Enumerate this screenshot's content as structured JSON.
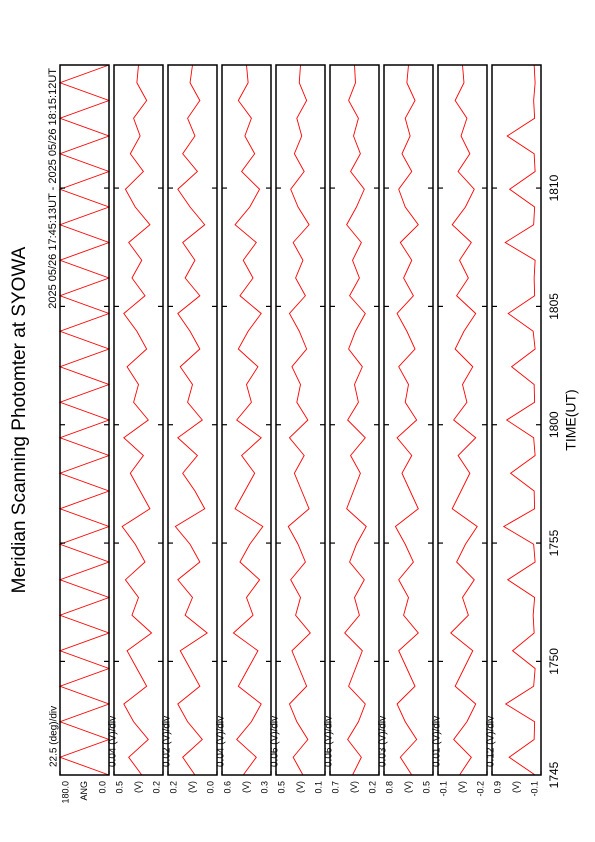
{
  "chart_data": {
    "type": "line",
    "title": "Meridian Scanning Photomter at SYOWA",
    "subtitle": "2025 05/26 17:45:13UT - 2025 05/26 18:15:12UT",
    "xlabel": "TIME(UT)",
    "color": "#ff0000",
    "xlim": [
      1065.2,
      1095.2
    ],
    "xticks": [
      {
        "value": 1065,
        "label": "1745"
      },
      {
        "value": 1070,
        "label": "1750"
      },
      {
        "value": 1075,
        "label": "1755"
      },
      {
        "value": 1080,
        "label": "1800"
      },
      {
        "value": 1085,
        "label": "1805"
      },
      {
        "value": 1090,
        "label": "1810"
      }
    ],
    "x": [
      1065.2,
      1065.95,
      1066.7,
      1067.45,
      1068.2,
      1068.95,
      1069.7,
      1070.45,
      1071.2,
      1071.95,
      1072.7,
      1073.45,
      1074.2,
      1074.95,
      1075.7,
      1076.45,
      1077.2,
      1077.95,
      1078.7,
      1079.45,
      1080.2,
      1080.95,
      1081.7,
      1082.45,
      1083.2,
      1083.95,
      1084.7,
      1085.45,
      1086.2,
      1086.95,
      1087.7,
      1088.45,
      1089.2,
      1089.95,
      1090.7,
      1091.45,
      1092.2,
      1092.95,
      1093.7,
      1094.45,
      1095.2
    ],
    "panels": [
      {
        "scale": "22.5 (deg)/div",
        "ylabel": "ANG",
        "ylim": [
          0,
          180
        ],
        "yticks": [
          {
            "value": 0,
            "label": "0.0"
          },
          {
            "value": 180,
            "label": "180.0"
          }
        ],
        "values": [
          0,
          180,
          0,
          180,
          0,
          180,
          0,
          180,
          0,
          180,
          0,
          180,
          0,
          180,
          0,
          180,
          0,
          180,
          0,
          180,
          0,
          180,
          0,
          180,
          0,
          180,
          0,
          180,
          0,
          180,
          0,
          180,
          0,
          180,
          0,
          180,
          0,
          180,
          0,
          180,
          0
        ]
      },
      {
        "scale": "0.04 (V)/div",
        "ylabel": "(V)",
        "ylim": [
          0.2,
          0.5
        ],
        "yticks": [
          0.2,
          0.5
        ],
        "values": [
          0.33,
          0.41,
          0.29,
          0.38,
          0.44,
          0.3,
          0.36,
          0.42,
          0.27,
          0.39,
          0.35,
          0.43,
          0.31,
          0.37,
          0.45,
          0.28,
          0.34,
          0.4,
          0.32,
          0.44,
          0.29,
          0.38,
          0.35,
          0.42,
          0.3,
          0.36,
          0.44,
          0.31,
          0.39,
          0.33,
          0.41,
          0.28,
          0.37,
          0.43,
          0.32,
          0.4,
          0.34,
          0.38,
          0.3,
          0.36,
          0.35
        ]
      },
      {
        "scale": "0.02 (V)/div",
        "ylabel": "(V)",
        "ylim": [
          0,
          0.2
        ],
        "yticks": [
          {
            "value": 0,
            "label": "0.0"
          },
          0.2
        ],
        "values": [
          0.09,
          0.14,
          0.06,
          0.12,
          0.16,
          0.07,
          0.11,
          0.15,
          0.04,
          0.13,
          0.1,
          0.16,
          0.07,
          0.11,
          0.17,
          0.05,
          0.09,
          0.14,
          0.08,
          0.16,
          0.06,
          0.12,
          0.1,
          0.15,
          0.07,
          0.11,
          0.16,
          0.07,
          0.13,
          0.09,
          0.14,
          0.05,
          0.11,
          0.16,
          0.08,
          0.14,
          0.09,
          0.12,
          0.07,
          0.11,
          0.1
        ]
      },
      {
        "scale": "0.04 (V)/div",
        "ylabel": "(V)",
        "ylim": [
          0.3,
          0.6
        ],
        "yticks": [
          0.3,
          0.6
        ],
        "values": [
          0.47,
          0.39,
          0.51,
          0.42,
          0.36,
          0.5,
          0.44,
          0.38,
          0.53,
          0.41,
          0.45,
          0.37,
          0.49,
          0.43,
          0.35,
          0.52,
          0.46,
          0.4,
          0.48,
          0.36,
          0.51,
          0.42,
          0.45,
          0.38,
          0.5,
          0.44,
          0.36,
          0.49,
          0.41,
          0.47,
          0.39,
          0.52,
          0.43,
          0.37,
          0.48,
          0.4,
          0.46,
          0.42,
          0.5,
          0.44,
          0.45
        ]
      },
      {
        "scale": "0.06 (V)/div",
        "ylabel": "(V)",
        "ylim": [
          0.1,
          0.5
        ],
        "yticks": [
          0.1,
          0.5
        ],
        "values": [
          0.28,
          0.36,
          0.24,
          0.33,
          0.39,
          0.25,
          0.31,
          0.37,
          0.22,
          0.34,
          0.3,
          0.38,
          0.26,
          0.32,
          0.4,
          0.23,
          0.29,
          0.35,
          0.27,
          0.39,
          0.24,
          0.33,
          0.3,
          0.37,
          0.25,
          0.31,
          0.39,
          0.26,
          0.34,
          0.28,
          0.36,
          0.23,
          0.32,
          0.38,
          0.27,
          0.35,
          0.29,
          0.33,
          0.25,
          0.31,
          0.3
        ]
      },
      {
        "scale": "0.06 (V)/div",
        "ylabel": "(V)",
        "ylim": [
          0.2,
          0.7
        ],
        "yticks": [
          0.2,
          0.7
        ],
        "values": [
          0.47,
          0.38,
          0.52,
          0.41,
          0.34,
          0.51,
          0.44,
          0.37,
          0.55,
          0.4,
          0.45,
          0.35,
          0.5,
          0.43,
          0.33,
          0.53,
          0.46,
          0.39,
          0.49,
          0.34,
          0.52,
          0.41,
          0.45,
          0.37,
          0.51,
          0.44,
          0.34,
          0.5,
          0.4,
          0.47,
          0.38,
          0.53,
          0.43,
          0.35,
          0.49,
          0.39,
          0.46,
          0.41,
          0.51,
          0.44,
          0.45
        ]
      },
      {
        "scale": "0.03 (V)/div",
        "ylabel": "(V)",
        "ylim": [
          0.5,
          0.8
        ],
        "yticks": [
          0.5,
          0.8
        ],
        "values": [
          0.63,
          0.7,
          0.6,
          0.67,
          0.72,
          0.61,
          0.66,
          0.71,
          0.59,
          0.68,
          0.65,
          0.71,
          0.62,
          0.67,
          0.73,
          0.59,
          0.64,
          0.69,
          0.63,
          0.72,
          0.6,
          0.67,
          0.65,
          0.71,
          0.61,
          0.66,
          0.72,
          0.62,
          0.68,
          0.63,
          0.7,
          0.59,
          0.67,
          0.71,
          0.63,
          0.69,
          0.64,
          0.67,
          0.61,
          0.66,
          0.65
        ]
      },
      {
        "scale": "0.01 (V)/div",
        "ylabel": "(V)",
        "ylim": [
          -0.2,
          -0.1
        ],
        "yticks": [
          -0.2,
          -0.1
        ],
        "values": [
          -0.144,
          -0.168,
          -0.132,
          -0.159,
          -0.177,
          -0.135,
          -0.153,
          -0.171,
          -0.126,
          -0.162,
          -0.15,
          -0.174,
          -0.138,
          -0.156,
          -0.18,
          -0.129,
          -0.147,
          -0.165,
          -0.141,
          -0.177,
          -0.132,
          -0.159,
          -0.15,
          -0.171,
          -0.135,
          -0.153,
          -0.177,
          -0.138,
          -0.162,
          -0.144,
          -0.168,
          -0.129,
          -0.156,
          -0.174,
          -0.141,
          -0.165,
          -0.147,
          -0.159,
          -0.135,
          -0.153,
          -0.15
        ]
      },
      {
        "scale": "0.12 (V)/div",
        "ylabel": "(V)",
        "ylim": [
          -0.1,
          0.9
        ],
        "yticks": [
          -0.1,
          0.9
        ],
        "values": [
          0.02,
          0.55,
          0.04,
          0.03,
          0.62,
          0.05,
          0.02,
          0.48,
          0.04,
          0.06,
          0.03,
          0.58,
          0.02,
          0.05,
          0.66,
          0.03,
          0.04,
          0.52,
          0.02,
          0.05,
          0.6,
          0.03,
          0.04,
          0.5,
          0.02,
          0.06,
          0.57,
          0.03,
          0.04,
          0.02,
          0.63,
          0.05,
          0.03,
          0.54,
          0.02,
          0.04,
          0.59,
          0.03,
          0.05,
          0.02,
          0.04
        ]
      }
    ]
  }
}
